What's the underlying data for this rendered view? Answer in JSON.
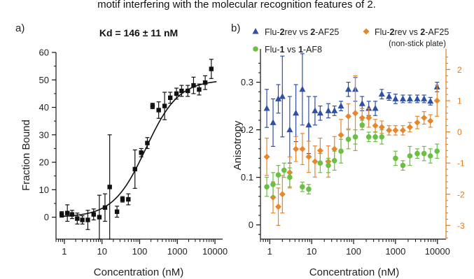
{
  "header_text": "motif interfering with the molecular recognition features of 2.",
  "colors": {
    "black": "#111111",
    "blue": "#2f4fa3",
    "orange": "#e8862b",
    "green": "#6bbf45",
    "orange_axis": "#e07a1f"
  },
  "chart_data": [
    {
      "panel": "a)",
      "type": "scatter",
      "title": "Kd = 146 ± 11 nM",
      "xlabel": "Concentration (nM)",
      "ylabel": "Fraction Bound",
      "xscale": "log",
      "xlim": [
        0.6,
        16000
      ],
      "ylim": [
        -8,
        60
      ],
      "x_ticks": [
        1,
        10,
        100,
        1000,
        10000
      ],
      "x_tick_labels": [
        "1",
        "10",
        "100",
        "1000",
        "10000"
      ],
      "y_ticks": [
        0,
        10,
        20,
        30,
        40,
        50,
        60
      ],
      "y_tick_labels": [
        "0",
        "10",
        "20",
        "30",
        "40",
        "50",
        "60"
      ],
      "fit": {
        "model": "binding isotherm",
        "Kd": 146,
        "bottom": 0,
        "top": 50,
        "hill": 1
      },
      "series": [
        {
          "marker": "square",
          "color": "#111111",
          "points": [
            {
              "x": 0.85,
              "y": 1,
              "err": 1
            },
            {
              "x": 1.2,
              "y": 1.5,
              "err": 3
            },
            {
              "x": 1.6,
              "y": 1,
              "err": 1.5
            },
            {
              "x": 2.2,
              "y": -0.5,
              "err": 2
            },
            {
              "x": 3.0,
              "y": -1,
              "err": 1.5
            },
            {
              "x": 4.2,
              "y": -1,
              "err": 3.5
            },
            {
              "x": 6.0,
              "y": 1,
              "err": 2
            },
            {
              "x": 8.5,
              "y": 0,
              "err": 8
            },
            {
              "x": 12,
              "y": 3.5,
              "err": 5
            },
            {
              "x": 16,
              "y": 11,
              "err": 19
            },
            {
              "x": 25,
              "y": 2,
              "err": 2
            },
            {
              "x": 35,
              "y": 6.5,
              "err": 1
            },
            {
              "x": 50,
              "y": 6.5,
              "err": 2
            },
            {
              "x": 75,
              "y": 17.5,
              "err": 7
            },
            {
              "x": 110,
              "y": 23.5,
              "err": 1.5
            },
            {
              "x": 160,
              "y": 27,
              "err": 2
            },
            {
              "x": 220,
              "y": 40.5,
              "err": 1
            },
            {
              "x": 320,
              "y": 39,
              "err": 3
            },
            {
              "x": 460,
              "y": 40.5,
              "err": 5
            },
            {
              "x": 650,
              "y": 43.5,
              "err": 2
            },
            {
              "x": 950,
              "y": 45,
              "err": 2
            },
            {
              "x": 1300,
              "y": 46,
              "err": 2
            },
            {
              "x": 1900,
              "y": 46,
              "err": 2
            },
            {
              "x": 2700,
              "y": 48,
              "err": 3
            },
            {
              "x": 3800,
              "y": 46.5,
              "err": 2
            },
            {
              "x": 5500,
              "y": 49,
              "err": 2.5
            },
            {
              "x": 8000,
              "y": 54,
              "err": 3.5
            }
          ]
        }
      ]
    },
    {
      "panel": "b)",
      "type": "scatter",
      "xlabel": "Concentration (nM)",
      "ylabel": "Anisotropy",
      "xscale": "log",
      "xlim": [
        0.6,
        16000
      ],
      "ylim": [
        -0.03,
        0.37
      ],
      "x_ticks": [
        1,
        10,
        100,
        1000,
        10000
      ],
      "x_tick_labels": [
        "1",
        "10",
        "100",
        "1000",
        "10000"
      ],
      "y_ticks": [
        0,
        0.1,
        0.2,
        0.3
      ],
      "y_tick_labels": [
        "0",
        "0.1",
        "0.2",
        "0.3"
      ],
      "y2lim": [
        -3.44,
        2.66
      ],
      "y2_ticks": [
        -3,
        -2,
        -1,
        0,
        1,
        2
      ],
      "y2_tick_labels": [
        "-3",
        "-2",
        "-1",
        "0",
        "1",
        "2"
      ],
      "legend": [
        {
          "parts": [
            {
              "t": "Flu-",
              "b": false
            },
            {
              "t": "2",
              "b": true
            },
            {
              "t": "rev vs ",
              "b": false
            },
            {
              "t": "2",
              "b": true
            },
            {
              "t": "-AF25",
              "b": false
            }
          ],
          "sub": ""
        },
        {
          "parts": [
            {
              "t": "Flu-",
              "b": false
            },
            {
              "t": "2",
              "b": true
            },
            {
              "t": "rev vs ",
              "b": false
            },
            {
              "t": "2",
              "b": true
            },
            {
              "t": "-AF25",
              "b": false
            }
          ],
          "sub": "(non-stick plate)"
        },
        {
          "parts": [
            {
              "t": "Flu-",
              "b": false
            },
            {
              "t": "1",
              "b": true
            },
            {
              "t": " vs ",
              "b": false
            },
            {
              "t": "1",
              "b": true
            },
            {
              "t": "-AF8",
              "b": false
            }
          ],
          "sub": ""
        }
      ],
      "series": [
        {
          "marker": "triangle",
          "color": "#2f4fa3",
          "axis": "left",
          "points": [
            {
              "x": 0.85,
              "y": 0.245,
              "err": 0.04
            },
            {
              "x": 1.2,
              "y": 0.215,
              "err": 0.05
            },
            {
              "x": 1.6,
              "y": 0.265,
              "err": 0.03
            },
            {
              "x": 2.0,
              "y": 0.27,
              "err": 0.085
            },
            {
              "x": 3.0,
              "y": 0.2,
              "err": 0.07
            },
            {
              "x": 4.2,
              "y": 0.235,
              "err": 0.06
            },
            {
              "x": 6.0,
              "y": 0.285,
              "err": 0.075
            },
            {
              "x": 8.5,
              "y": 0.21,
              "err": 0.06
            },
            {
              "x": 12,
              "y": 0.24,
              "err": 0.03
            },
            {
              "x": 16,
              "y": 0.235,
              "err": 0.015
            },
            {
              "x": 25,
              "y": 0.24,
              "err": 0.015
            },
            {
              "x": 35,
              "y": 0.24,
              "err": 0.01
            },
            {
              "x": 50,
              "y": 0.25,
              "err": 0.01
            },
            {
              "x": 75,
              "y": 0.285,
              "err": 0.015
            },
            {
              "x": 110,
              "y": 0.285,
              "err": 0.025
            },
            {
              "x": 160,
              "y": 0.255,
              "err": 0.015
            },
            {
              "x": 230,
              "y": 0.245,
              "err": 0.015
            },
            {
              "x": 330,
              "y": 0.245,
              "err": 0.015
            },
            {
              "x": 470,
              "y": 0.275,
              "err": 0.01
            },
            {
              "x": 700,
              "y": 0.27,
              "err": 0.008
            },
            {
              "x": 1000,
              "y": 0.265,
              "err": 0.01
            },
            {
              "x": 1500,
              "y": 0.265,
              "err": 0.008
            },
            {
              "x": 2200,
              "y": 0.265,
              "err": 0.008
            },
            {
              "x": 3300,
              "y": 0.265,
              "err": 0.008
            },
            {
              "x": 4800,
              "y": 0.265,
              "err": 0.008
            },
            {
              "x": 6800,
              "y": 0.26,
              "err": 0.008
            },
            {
              "x": 9800,
              "y": 0.29,
              "err": 0.01
            }
          ]
        },
        {
          "marker": "diamond",
          "color": "#e8862b",
          "axis": "right",
          "points": [
            {
              "x": 0.85,
              "y": -0.8,
              "err": 0.6
            },
            {
              "x": 1.2,
              "y": -2.1,
              "err": 0.5
            },
            {
              "x": 1.6,
              "y": -2.4,
              "err": 0.6
            },
            {
              "x": 2.0,
              "y": -2.0,
              "err": 0.6
            },
            {
              "x": 3.0,
              "y": -1.3,
              "err": 0.5
            },
            {
              "x": 4.2,
              "y": -0.55,
              "err": 0.4
            },
            {
              "x": 6.0,
              "y": -0.55,
              "err": 0.5
            },
            {
              "x": 8.5,
              "y": -0.8,
              "err": 0.5
            },
            {
              "x": 12,
              "y": -0.95,
              "err": 0.5
            },
            {
              "x": 16,
              "y": -0.6,
              "err": 0.4
            },
            {
              "x": 25,
              "y": -0.95,
              "err": 0.5
            },
            {
              "x": 35,
              "y": -0.55,
              "err": 0.4
            },
            {
              "x": 50,
              "y": -0.1,
              "err": 0.5
            },
            {
              "x": 75,
              "y": 0.5,
              "err": 0.4
            },
            {
              "x": 110,
              "y": 0.6,
              "err": 1.2
            },
            {
              "x": 160,
              "y": 0.45,
              "err": 0.3
            },
            {
              "x": 230,
              "y": 0.45,
              "err": 0.3
            },
            {
              "x": 330,
              "y": 0.2,
              "err": 0.2
            },
            {
              "x": 470,
              "y": 0.15,
              "err": 0.2
            },
            {
              "x": 700,
              "y": 0.05,
              "err": 0.15
            },
            {
              "x": 1000,
              "y": 0.05,
              "err": 0.15
            },
            {
              "x": 1500,
              "y": 0.05,
              "err": 0.15
            },
            {
              "x": 2200,
              "y": 0.15,
              "err": 0.15
            },
            {
              "x": 3300,
              "y": 0.3,
              "err": 0.2
            },
            {
              "x": 4800,
              "y": 0.45,
              "err": 0.2
            },
            {
              "x": 6800,
              "y": 0.35,
              "err": 0.2
            },
            {
              "x": 9800,
              "y": 1.0,
              "err": 0.5
            }
          ]
        },
        {
          "marker": "circle",
          "color": "#6bbf45",
          "axis": "left",
          "points": [
            {
              "x": 0.85,
              "y": 0.08,
              "err": 0.02
            },
            {
              "x": 1.2,
              "y": 0.085,
              "err": 0.025
            },
            {
              "x": 1.6,
              "y": 0.105,
              "err": 0.02
            },
            {
              "x": 2.2,
              "y": 0.115,
              "err": 0.015
            },
            {
              "x": 3.0,
              "y": 0.1,
              "err": 0.02
            },
            {
              "x": 6.0,
              "y": 0.08,
              "err": 0.01
            },
            {
              "x": 8.5,
              "y": 0.075,
              "err": 0.01
            },
            {
              "x": 16,
              "y": 0.13,
              "err": 0.02
            },
            {
              "x": 25,
              "y": 0.125,
              "err": 0.015
            },
            {
              "x": 35,
              "y": 0.135,
              "err": 0.02
            },
            {
              "x": 50,
              "y": 0.155,
              "err": 0.025
            },
            {
              "x": 75,
              "y": 0.18,
              "err": 0.02
            },
            {
              "x": 110,
              "y": 0.185,
              "err": 0.015
            },
            {
              "x": 160,
              "y": 0.21,
              "err": 0.01
            },
            {
              "x": 230,
              "y": 0.185,
              "err": 0.01
            },
            {
              "x": 330,
              "y": 0.185,
              "err": 0.01
            },
            {
              "x": 470,
              "y": 0.185,
              "err": 0.015
            },
            {
              "x": 1000,
              "y": 0.14,
              "err": 0.015
            },
            {
              "x": 1500,
              "y": 0.125,
              "err": 0.01
            },
            {
              "x": 2200,
              "y": 0.145,
              "err": 0.02
            },
            {
              "x": 3300,
              "y": 0.15,
              "err": 0.01
            },
            {
              "x": 4800,
              "y": 0.15,
              "err": 0.015
            },
            {
              "x": 6800,
              "y": 0.145,
              "err": 0.015
            },
            {
              "x": 9800,
              "y": 0.155,
              "err": 0.015
            }
          ]
        }
      ]
    }
  ]
}
